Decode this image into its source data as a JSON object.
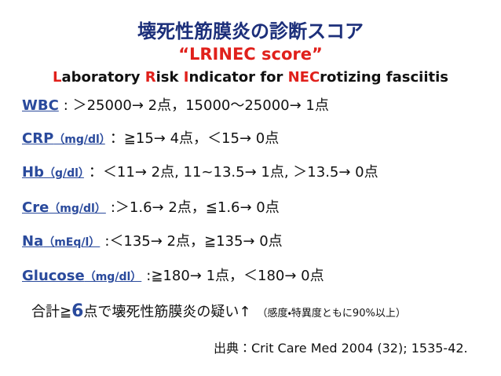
{
  "header": {
    "title": "壊死性筋膜炎の診断スコア",
    "subtitle": "“LRINEC score”",
    "expansion": [
      "L",
      "aboratory ",
      "R",
      "isk ",
      "I",
      "ndicator for ",
      "NEC",
      "rotizing fasciitis"
    ]
  },
  "items": [
    {
      "label": "WBC",
      "unit": null,
      "rule": ": ＞25000→ 2点，15000～25000→ 1点"
    },
    {
      "label": "CRP",
      "unit": "（mg/dl）",
      "rule": "：≧15→ 4点，＜15→ 0点"
    },
    {
      "label": "Hb",
      "unit": "（g/dl）",
      "rule": "：＜11→ 2点, 11~13.5→ 1点, ＞13.5→ 0点"
    },
    {
      "label": "Cre",
      "unit": "（mg/dl）",
      "rule": ":＞1.6→ 2点，≦1.6→ 0点"
    },
    {
      "label": "Na",
      "unit": "（mEq/l）",
      "rule": ":＜135→ 2点，≧135→ 0点"
    },
    {
      "label": "Glucose",
      "unit": "（mg/dl）",
      "rule": ":≧180→ 1点，＜180→ 0点"
    }
  ],
  "summary": {
    "prefix": "合計≧",
    "threshold": "6",
    "suffix": "点で壊死性筋膜炎の疑い↑",
    "note": "（感度・特異度ともに90%以上）"
  },
  "source": "出典：Crit Care Med 2004 (32); 1535-42."
}
